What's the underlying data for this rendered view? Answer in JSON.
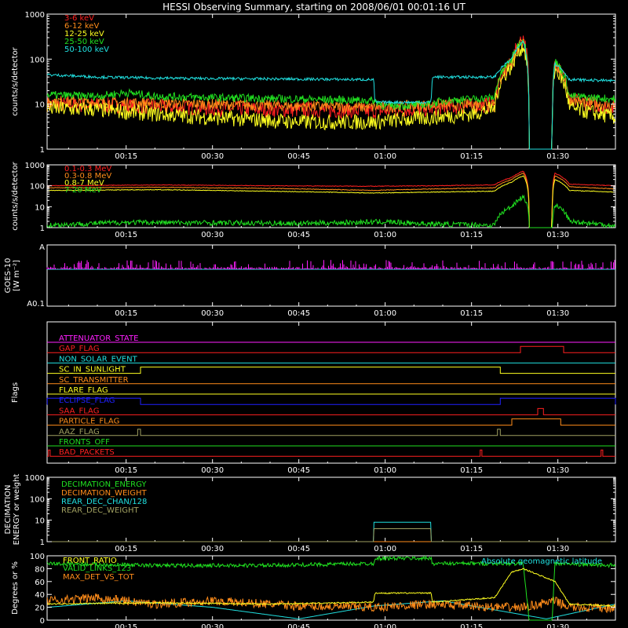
{
  "title": "HESSI Observing Summary, starting on 2008/06/01 00:01:16 UT",
  "time_ticks": [
    "00:15",
    "00:30",
    "00:45",
    "01:00",
    "01:15",
    "01:30"
  ],
  "colors": {
    "red": "#ff2020",
    "orange": "#ff8c1a",
    "yellow": "#ffff20",
    "green": "#20e020",
    "cyan": "#20e0e0",
    "magenta": "#ff20ff",
    "blue": "#2020ff",
    "olive": "#a0a060",
    "white": "#ffffff"
  },
  "chart_data": [
    {
      "type": "line",
      "panel": "low-energy-rates",
      "ylabel": "counts/s/detector",
      "y_scale": "log",
      "ylim": [
        1,
        1000
      ],
      "y_ticks": [
        "1",
        "10",
        "100",
        "1000"
      ],
      "xlim_minutes": [
        1.27,
        100
      ],
      "x_ticks": [
        "00:15",
        "00:30",
        "00:45",
        "01:00",
        "01:15",
        "01:30"
      ],
      "legend_position": "top-left",
      "series": [
        {
          "name": "3-6 keV",
          "color": "red",
          "points": [
            [
              1.3,
              10
            ],
            [
              10,
              9.5
            ],
            [
              20,
              8.8
            ],
            [
              30,
              8
            ],
            [
              45,
              7.5
            ],
            [
              58,
              7
            ],
            [
              68,
              8
            ],
            [
              75,
              9
            ],
            [
              79,
              10
            ],
            [
              82,
              80
            ],
            [
              84,
              300
            ],
            [
              85,
              1
            ],
            [
              89,
              1
            ],
            [
              89.5,
              90
            ],
            [
              92,
              12
            ],
            [
              100,
              8
            ]
          ]
        },
        {
          "name": "6-12 keV",
          "color": "orange",
          "points": [
            [
              1.3,
              12
            ],
            [
              10,
              11
            ],
            [
              20,
              10.5
            ],
            [
              30,
              10
            ],
            [
              45,
              9
            ],
            [
              58,
              8.5
            ],
            [
              68,
              9.5
            ],
            [
              75,
              10
            ],
            [
              79,
              11
            ],
            [
              82,
              90
            ],
            [
              84,
              250
            ],
            [
              85,
              1
            ],
            [
              89,
              1
            ],
            [
              89.5,
              80
            ],
            [
              92,
              12
            ],
            [
              100,
              9
            ]
          ]
        },
        {
          "name": "12-25 keV",
          "color": "yellow",
          "points": [
            [
              1.3,
              8
            ],
            [
              10,
              7.5
            ],
            [
              20,
              6
            ],
            [
              30,
              5
            ],
            [
              45,
              4
            ],
            [
              58,
              4
            ],
            [
              68,
              5
            ],
            [
              75,
              6
            ],
            [
              79,
              8
            ],
            [
              82,
              70
            ],
            [
              84,
              200
            ],
            [
              85,
              1
            ],
            [
              89,
              1
            ],
            [
              89.5,
              60
            ],
            [
              92,
              8
            ],
            [
              100,
              5
            ]
          ]
        },
        {
          "name": "25-50 keV",
          "color": "green",
          "points": [
            [
              1.3,
              16
            ],
            [
              10,
              15
            ],
            [
              15,
              18
            ],
            [
              20,
              15
            ],
            [
              30,
              14
            ],
            [
              45,
              13
            ],
            [
              58,
              12
            ],
            [
              60,
              9
            ],
            [
              68,
              10
            ],
            [
              70,
              12
            ],
            [
              75,
              13
            ],
            [
              79,
              14
            ],
            [
              82,
              100
            ],
            [
              84,
              280
            ],
            [
              85,
              1
            ],
            [
              89,
              1
            ],
            [
              89.5,
              90
            ],
            [
              92,
              15
            ],
            [
              100,
              13
            ]
          ]
        },
        {
          "name": "50-100 keV",
          "color": "cyan",
          "points": [
            [
              1.3,
              45
            ],
            [
              10,
              40
            ],
            [
              20,
              38
            ],
            [
              30,
              37
            ],
            [
              45,
              36
            ],
            [
              58,
              35
            ],
            [
              58.2,
              11
            ],
            [
              68,
              11
            ],
            [
              68.2,
              40
            ],
            [
              75,
              40
            ],
            [
              79,
              40
            ],
            [
              82,
              100
            ],
            [
              84,
              250
            ],
            [
              85,
              1
            ],
            [
              89,
              1
            ],
            [
              89.5,
              80
            ],
            [
              92,
              35
            ],
            [
              100,
              33
            ]
          ]
        }
      ]
    },
    {
      "type": "line",
      "panel": "high-energy-rates",
      "ylabel": "counts/s/detector",
      "y_scale": "log",
      "ylim": [
        1,
        1000
      ],
      "y_ticks": [
        "1",
        "10",
        "100",
        "1000"
      ],
      "xlim_minutes": [
        1.27,
        100
      ],
      "legend_position": "top-left",
      "series": [
        {
          "name": "0.1-0.3 MeV",
          "color": "red",
          "points": [
            [
              1.3,
              100
            ],
            [
              20,
              110
            ],
            [
              40,
              100
            ],
            [
              58,
              95
            ],
            [
              68,
              100
            ],
            [
              79,
              110
            ],
            [
              82,
              250
            ],
            [
              84,
              500
            ],
            [
              85,
              1
            ],
            [
              89,
              1
            ],
            [
              89.5,
              400
            ],
            [
              92,
              120
            ],
            [
              100,
              100
            ]
          ]
        },
        {
          "name": "0.3-0.8 MeV",
          "color": "orange",
          "points": [
            [
              1.3,
              80
            ],
            [
              20,
              85
            ],
            [
              40,
              75
            ],
            [
              58,
              60
            ],
            [
              68,
              70
            ],
            [
              79,
              80
            ],
            [
              82,
              200
            ],
            [
              84,
              400
            ],
            [
              85,
              1
            ],
            [
              89,
              1
            ],
            [
              89.5,
              300
            ],
            [
              92,
              90
            ],
            [
              100,
              70
            ]
          ]
        },
        {
          "name": "0.8-7 MeV",
          "color": "yellow",
          "points": [
            [
              1.3,
              60
            ],
            [
              20,
              65
            ],
            [
              40,
              55
            ],
            [
              58,
              45
            ],
            [
              68,
              50
            ],
            [
              79,
              55
            ],
            [
              82,
              150
            ],
            [
              84,
              300
            ],
            [
              85,
              1
            ],
            [
              89,
              1
            ],
            [
              89.5,
              200
            ],
            [
              92,
              60
            ],
            [
              100,
              50
            ]
          ]
        },
        {
          "name": "7-20 MeV",
          "color": "green",
          "points": [
            [
              1.3,
              1.3
            ],
            [
              15,
              1.8
            ],
            [
              30,
              1.7
            ],
            [
              45,
              1.6
            ],
            [
              60,
              1.9
            ],
            [
              68,
              1.5
            ],
            [
              79,
              1.3
            ],
            [
              82,
              10
            ],
            [
              84,
              30
            ],
            [
              85,
              1
            ],
            [
              89,
              1
            ],
            [
              89.5,
              12
            ],
            [
              92,
              2
            ],
            [
              100,
              1.2
            ]
          ]
        }
      ]
    },
    {
      "type": "bar",
      "panel": "goes",
      "ylabel": "GOES-10",
      "ylabel2": "[W m⁻²]",
      "y_ticks": [
        "A",
        "A0.1"
      ],
      "xlim_minutes": [
        1.27,
        100
      ]
    },
    {
      "type": "line",
      "panel": "flags",
      "ylabel": "Flags",
      "xlim_minutes": [
        1.27,
        100
      ],
      "flags": [
        {
          "name": "ATTENUATOR_STATE",
          "color": "magenta",
          "on": []
        },
        {
          "name": "GAP_FLAG",
          "color": "red",
          "on": [
            [
              83.5,
              91
            ]
          ]
        },
        {
          "name": "NON_SOLAR_EVENT",
          "color": "cyan",
          "on": []
        },
        {
          "name": "SC_IN_SUNLIGHT",
          "color": "yellow",
          "on": [
            [
              17.5,
              80
            ]
          ]
        },
        {
          "name": "SC_TRANSMITTER",
          "color": "orange",
          "on": []
        },
        {
          "name": "FLARE_FLAG",
          "color": "yellow",
          "on": []
        },
        {
          "name": "ECLIPSE_FLAG",
          "color": "blue",
          "on": [
            [
              1.3,
              17.5
            ],
            [
              80,
              100
            ]
          ]
        },
        {
          "name": "SAA_FLAG",
          "color": "red",
          "on": [
            [
              86.5,
              87.5
            ]
          ]
        },
        {
          "name": "PARTICLE_FLAG",
          "color": "orange",
          "on": [
            [
              82,
              90.5
            ]
          ]
        },
        {
          "name": "AAZ_FLAG",
          "color": "olive",
          "on": [
            [
              17,
              17.5
            ],
            [
              79.5,
              80
            ]
          ]
        },
        {
          "name": "FRONTS_OFF",
          "color": "green",
          "on": []
        },
        {
          "name": "BAD_PACKETS",
          "color": "red",
          "on": [
            [
              1.5,
              1.8
            ],
            [
              76.5,
              76.8
            ],
            [
              97.5,
              97.8
            ]
          ]
        }
      ]
    },
    {
      "type": "line",
      "panel": "decimation",
      "ylabel": "DECIMATION",
      "ylabel2": "ENERGY or weight",
      "y_scale": "log",
      "ylim": [
        1,
        1000
      ],
      "y_ticks": [
        "1",
        "10",
        "100",
        "1000"
      ],
      "xlim_minutes": [
        1.27,
        100
      ],
      "series": [
        {
          "name": "DECIMATION_ENERGY",
          "color": "green",
          "points": [
            [
              1.3,
              1
            ],
            [
              100,
              1
            ]
          ]
        },
        {
          "name": "DECIMATION_WEIGHT",
          "color": "orange",
          "points": [
            [
              1.3,
              1
            ],
            [
              100,
              1
            ]
          ]
        },
        {
          "name": "REAR_DEC_CHAN/128",
          "color": "cyan",
          "points": [
            [
              1.3,
              1
            ],
            [
              58,
              1
            ],
            [
              58,
              8
            ],
            [
              68,
              8
            ],
            [
              68,
              1
            ],
            [
              100,
              1
            ]
          ]
        },
        {
          "name": "REAR_DEC_WEIGHT",
          "color": "olive",
          "points": [
            [
              1.3,
              1
            ],
            [
              58,
              1
            ],
            [
              58,
              4
            ],
            [
              68,
              4
            ],
            [
              68,
              1
            ],
            [
              100,
              1
            ]
          ]
        }
      ]
    },
    {
      "type": "line",
      "panel": "ratios",
      "ylabel": "Degrees or %",
      "ylim": [
        0,
        100
      ],
      "y_ticks": [
        "0",
        "20",
        "40",
        "60",
        "80",
        "100"
      ],
      "xlim_minutes": [
        1.27,
        100
      ],
      "annotation": "Absolute geomagnetic latitude",
      "series": [
        {
          "name": "FRONT_RATIO",
          "color": "yellow",
          "points": [
            [
              1.3,
              25
            ],
            [
              20,
              27
            ],
            [
              40,
              25
            ],
            [
              58,
              28
            ],
            [
              58.2,
              42
            ],
            [
              68,
              42
            ],
            [
              68.2,
              28
            ],
            [
              79,
              35
            ],
            [
              82,
              75
            ],
            [
              84,
              80
            ],
            [
              89.5,
              60
            ],
            [
              92,
              25
            ],
            [
              100,
              22
            ]
          ]
        },
        {
          "name": "MAX_DET_VS_TOT",
          "color": "orange",
          "points": [
            [
              1.3,
              30
            ],
            [
              10,
              35
            ],
            [
              20,
              25
            ],
            [
              30,
              30
            ],
            [
              45,
              22
            ],
            [
              58,
              20
            ],
            [
              68,
              25
            ],
            [
              79,
              20
            ],
            [
              84,
              20
            ],
            [
              89.5,
              30
            ],
            [
              92,
              20
            ],
            [
              100,
              18
            ]
          ]
        },
        {
          "name": "VALID_LINKS_123",
          "color": "green",
          "points": [
            [
              1.3,
              88
            ],
            [
              20,
              85
            ],
            [
              40,
              85
            ],
            [
              58,
              88
            ],
            [
              58.2,
              96
            ],
            [
              68,
              96
            ],
            [
              68.2,
              88
            ],
            [
              84,
              88
            ],
            [
              85,
              0
            ],
            [
              89,
              0
            ],
            [
              89.5,
              88
            ],
            [
              100,
              85
            ]
          ]
        },
        {
          "name": "Absolute geomagnetic latitude",
          "color": "cyan",
          "points": [
            [
              1.3,
              20
            ],
            [
              15,
              30
            ],
            [
              30,
              20
            ],
            [
              45,
              2
            ],
            [
              58,
              22
            ],
            [
              70,
              30
            ],
            [
              88,
              2
            ],
            [
              100,
              25
            ]
          ]
        }
      ]
    }
  ]
}
